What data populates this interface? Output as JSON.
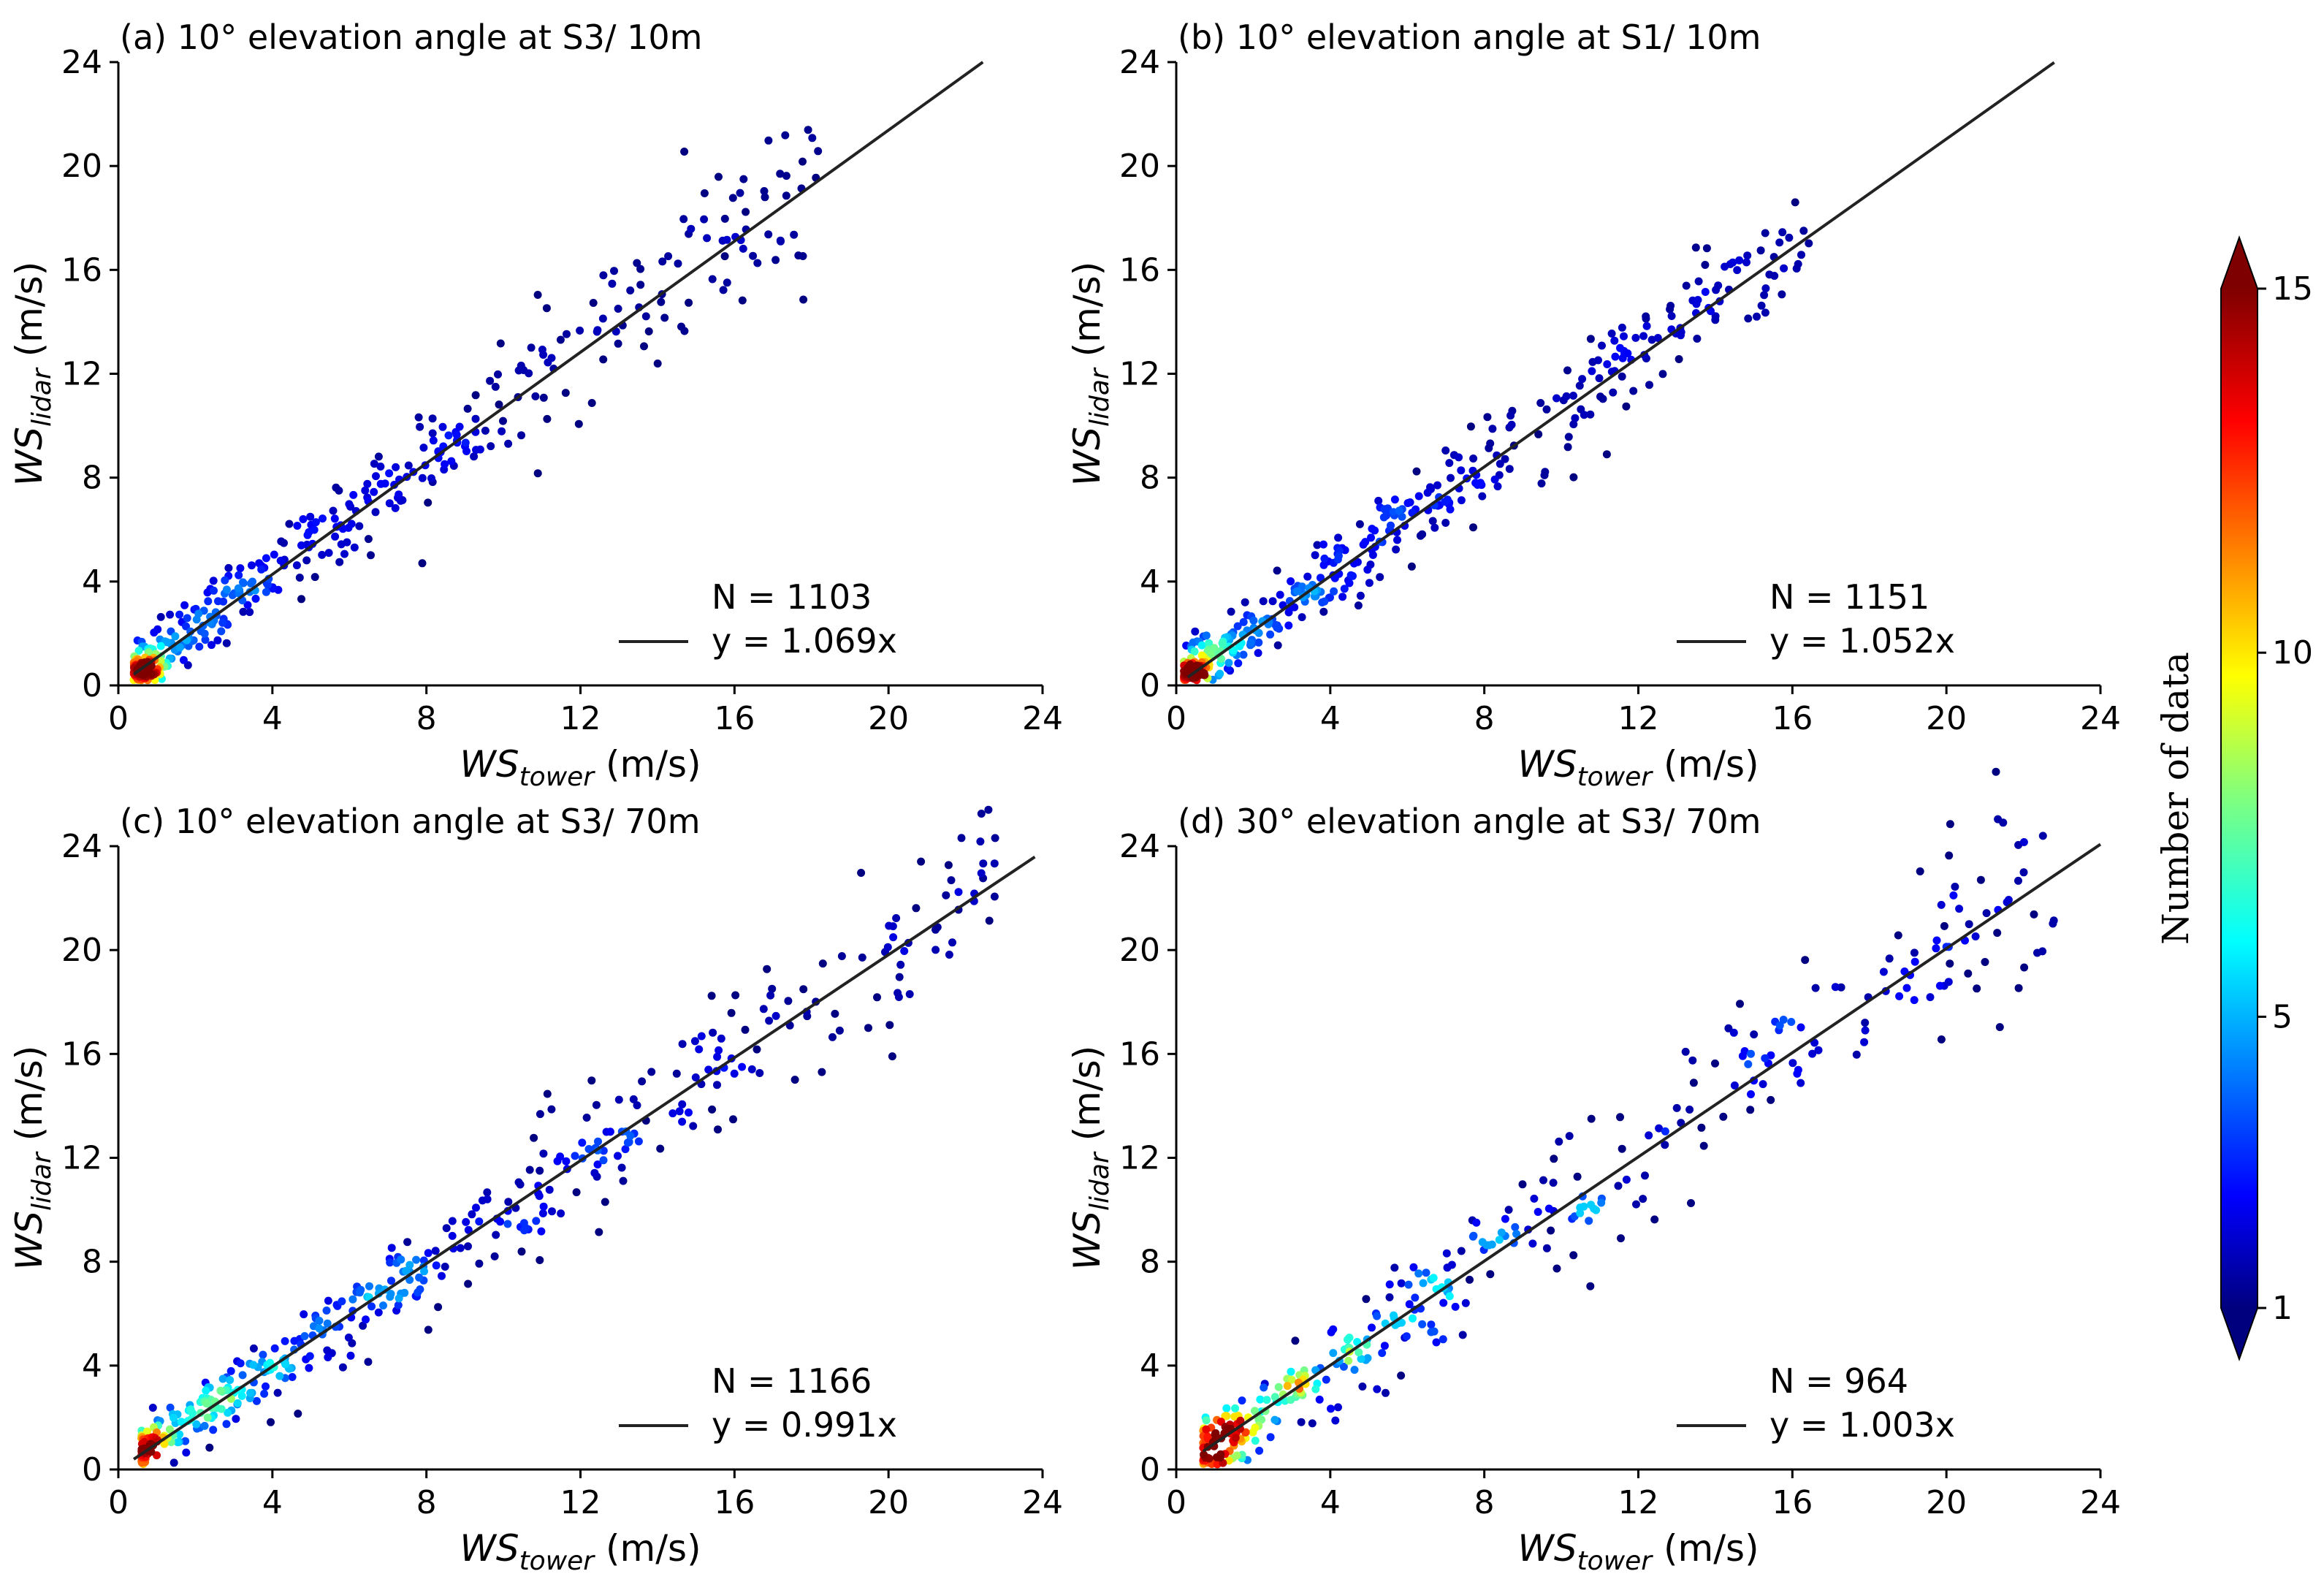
{
  "chart_data": {
    "type": "scatter",
    "colorbar": {
      "label": "Number of data",
      "min": 1,
      "max": 15,
      "ticks": [
        1,
        5,
        10,
        15
      ],
      "tick_labels": [
        "1",
        "5",
        "10",
        "15"
      ],
      "colormap": "jet",
      "extend": "both"
    },
    "panels": [
      {
        "id": "a",
        "title": "(a) 10° elevation angle at S3/ 10m",
        "xlabel_main": "WS",
        "xlabel_sub": "tower",
        "xlabel_unit": " (m/s)",
        "ylabel_main": "WS",
        "ylabel_sub": "lidar",
        "ylabel_unit": " (m/s)",
        "xlim": [
          0,
          24
        ],
        "ylim": [
          0,
          24
        ],
        "xticks": [
          0,
          4,
          8,
          12,
          16,
          20,
          24
        ],
        "yticks": [
          0,
          4,
          8,
          12,
          16,
          20,
          24
        ],
        "n_label": "N = 1103",
        "fit_label": "y = 1.069x",
        "slope": 1.069,
        "fit_x": [
          0.4,
          22.45
        ],
        "point_range": [
          0.4,
          18.5
        ],
        "spread": 0.85,
        "point_count": 420,
        "seed": 11
      },
      {
        "id": "b",
        "title": "(b) 10° elevation angle at S1/ 10m",
        "xlabel_main": "WS",
        "xlabel_sub": "tower",
        "xlabel_unit": " (m/s)",
        "ylabel_main": "WS",
        "ylabel_sub": "lidar",
        "ylabel_unit": " (m/s)",
        "xlim": [
          0,
          24
        ],
        "ylim": [
          0,
          24
        ],
        "xticks": [
          0,
          4,
          8,
          12,
          16,
          20,
          24
        ],
        "yticks": [
          0,
          4,
          8,
          12,
          16,
          20,
          24
        ],
        "n_label": "N = 1151",
        "fit_label": "y = 1.052x",
        "slope": 1.052,
        "fit_x": [
          0.3,
          22.8
        ],
        "point_range": [
          0.2,
          16.6
        ],
        "spread": 0.75,
        "point_count": 440,
        "seed": 23
      },
      {
        "id": "c",
        "title": "(c) 10° elevation angle at S3/ 70m",
        "xlabel_main": "WS",
        "xlabel_sub": "tower",
        "xlabel_unit": " (m/s)",
        "ylabel_main": "WS",
        "ylabel_sub": "lidar",
        "ylabel_unit": " (m/s)",
        "xlim": [
          0,
          24
        ],
        "ylim": [
          0,
          24
        ],
        "xticks": [
          0,
          4,
          8,
          12,
          16,
          20,
          24
        ],
        "yticks": [
          0,
          4,
          8,
          12,
          16,
          20,
          24
        ],
        "n_label": "N = 1166",
        "fit_label": "y = 0.991x",
        "slope": 0.991,
        "fit_x": [
          0.4,
          23.8
        ],
        "point_range": [
          0.6,
          22.8
        ],
        "spread": 0.8,
        "point_count": 450,
        "seed": 37
      },
      {
        "id": "d",
        "title": "(d) 30° elevation angle at S3/ 70m",
        "xlabel_main": "WS",
        "xlabel_sub": "tower",
        "xlabel_unit": " (m/s)",
        "ylabel_main": "WS",
        "ylabel_sub": "lidar",
        "ylabel_unit": " (m/s)",
        "xlim": [
          0,
          24
        ],
        "ylim": [
          0,
          24
        ],
        "xticks": [
          0,
          4,
          8,
          12,
          16,
          20,
          24
        ],
        "yticks": [
          0,
          4,
          8,
          12,
          16,
          20,
          24
        ],
        "n_label": "N = 964",
        "fit_label": "y = 1.003x",
        "slope": 1.003,
        "fit_x": [
          0.7,
          24.0
        ],
        "point_range": [
          0.7,
          22.8
        ],
        "spread": 0.95,
        "point_count": 380,
        "seed": 53
      }
    ]
  }
}
